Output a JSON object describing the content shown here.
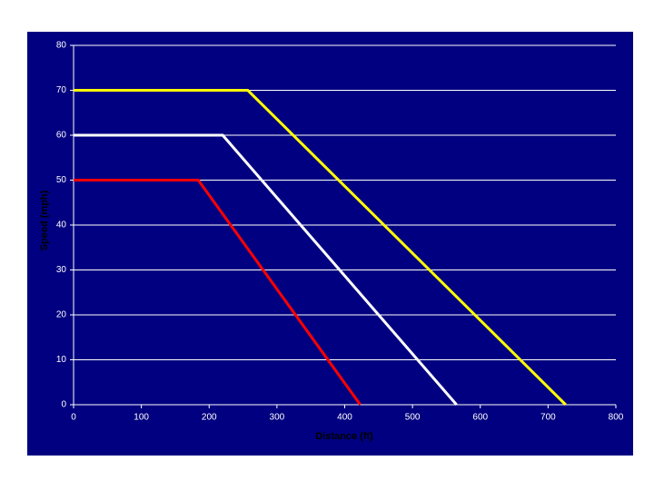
{
  "chart_data": {
    "type": "line",
    "xlabel": "Distance (ft)",
    "ylabel": "Speed (mph)",
    "xlim": [
      0,
      800
    ],
    "xticks": [
      0,
      100,
      200,
      300,
      400,
      500,
      600,
      700,
      800
    ],
    "ylim": [
      0,
      80
    ],
    "yticks": [
      0,
      10,
      20,
      30,
      40,
      50,
      60,
      70,
      80
    ],
    "grid": true,
    "series": [
      {
        "color": "#ffff00",
        "x": [
          0,
          257,
          726
        ],
        "values": [
          70,
          70,
          0
        ]
      },
      {
        "color": "#ffffff",
        "x": [
          0,
          220,
          565
        ],
        "values": [
          60,
          60,
          0
        ]
      },
      {
        "color": "#ff0000",
        "x": [
          0,
          184,
          423
        ],
        "values": [
          50,
          50,
          0
        ]
      }
    ]
  }
}
